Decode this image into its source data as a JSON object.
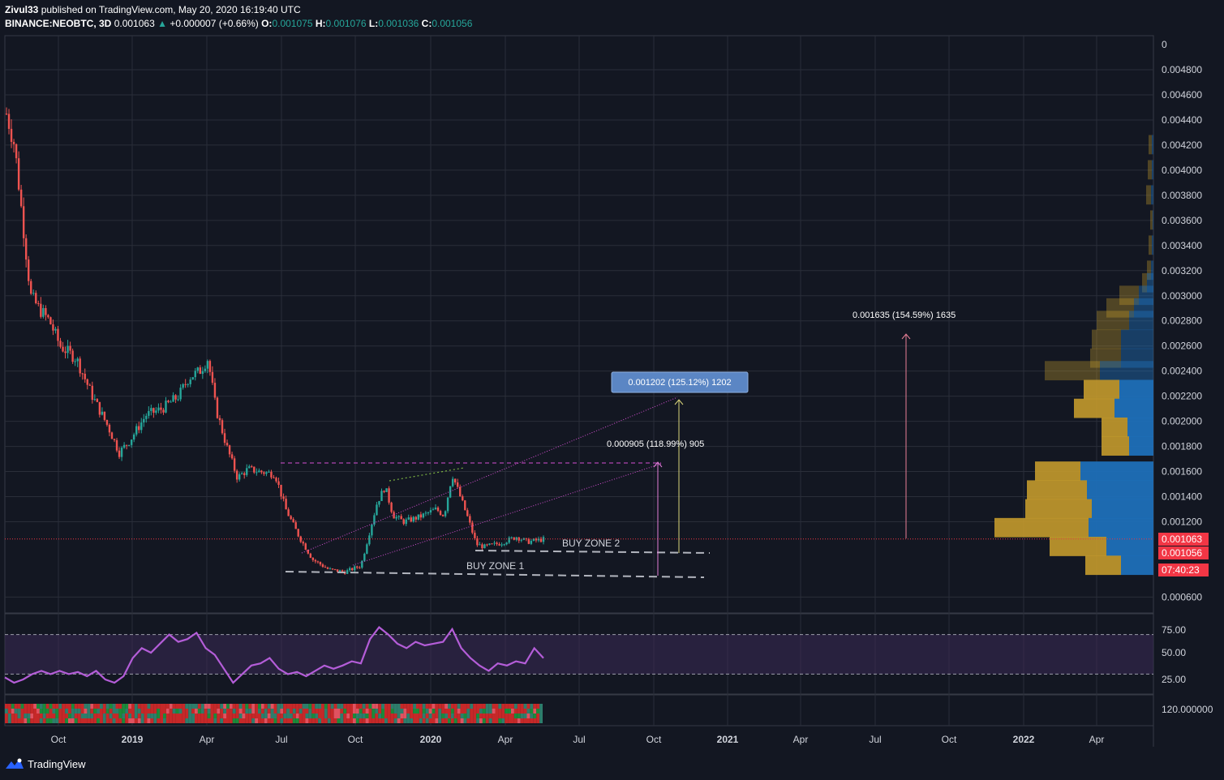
{
  "header": {
    "author": "Zivul33",
    "published": "published on TradingView.com, May 20, 2020 16:19:40 UTC",
    "symbol": "BINANCE:NEOBTC, 3D",
    "last": "0.001063",
    "change": "+0.000007 (+0.66%)",
    "o_label": "O:",
    "o": "0.001075",
    "h_label": "H:",
    "h": "0.001076",
    "l_label": "L:",
    "l": "0.001036",
    "c_label": "C:",
    "c": "0.001056"
  },
  "footer": {
    "brand": "TradingView"
  },
  "colors": {
    "background": "#131722",
    "grid": "#2a2e39",
    "up": "#26a69a",
    "down": "#ef5350",
    "rsi_line": "#b45dd8",
    "rsi_band": "#3b2a55",
    "vp_up": "#1e6fb8",
    "vp_down": "#c49a2c",
    "price_label_bg": "#f23645",
    "magenta": "#d64fd4"
  },
  "chart_data": {
    "type": "candlestick",
    "symbol": "BINANCE:NEOBTC",
    "timeframe": "3D",
    "x_ticks": [
      "Oct",
      "2019",
      "Apr",
      "Jul",
      "Oct",
      "2020",
      "Apr",
      "Jul",
      "Oct",
      "2021",
      "Apr",
      "Jul",
      "Oct",
      "2022",
      "Apr"
    ],
    "y_ticks": [
      "0",
      "0.004800",
      "0.004600",
      "0.004400",
      "0.004200",
      "0.004000",
      "0.003800",
      "0.003600",
      "0.003400",
      "0.003200",
      "0.003000",
      "0.002800",
      "0.002600",
      "0.002400",
      "0.002200",
      "0.002000",
      "0.001800",
      "0.001600",
      "0.001400",
      "0.001200",
      "0.000600"
    ],
    "ylim": [
      0.0005,
      0.005
    ],
    "price_path": [
      [
        0.0,
        0.00445
      ],
      [
        0.015,
        0.0042
      ],
      [
        0.03,
        0.0036
      ],
      [
        0.045,
        0.003
      ],
      [
        0.06,
        0.0029
      ],
      [
        0.08,
        0.0028
      ],
      [
        0.1,
        0.0026
      ],
      [
        0.13,
        0.0025
      ],
      [
        0.16,
        0.0022
      ],
      [
        0.19,
        0.00195
      ],
      [
        0.21,
        0.00175
      ],
      [
        0.23,
        0.00185
      ],
      [
        0.26,
        0.00205
      ],
      [
        0.29,
        0.0021
      ],
      [
        0.32,
        0.0022
      ],
      [
        0.34,
        0.00235
      ],
      [
        0.36,
        0.0024
      ],
      [
        0.375,
        0.0025
      ],
      [
        0.39,
        0.0021
      ],
      [
        0.41,
        0.0018
      ],
      [
        0.43,
        0.00155
      ],
      [
        0.45,
        0.00162
      ],
      [
        0.47,
        0.0016
      ],
      [
        0.5,
        0.00158
      ],
      [
        0.52,
        0.0013
      ],
      [
        0.545,
        0.00108
      ],
      [
        0.57,
        0.0009
      ],
      [
        0.6,
        0.00082
      ],
      [
        0.63,
        0.0008
      ],
      [
        0.66,
        0.00085
      ],
      [
        0.675,
        0.0011
      ],
      [
        0.69,
        0.00135
      ],
      [
        0.705,
        0.00148
      ],
      [
        0.72,
        0.00125
      ],
      [
        0.74,
        0.0012
      ],
      [
        0.77,
        0.00124
      ],
      [
        0.8,
        0.0013
      ],
      [
        0.815,
        0.00125
      ],
      [
        0.83,
        0.00158
      ],
      [
        0.845,
        0.0014
      ],
      [
        0.86,
        0.00122
      ],
      [
        0.875,
        0.00102
      ],
      [
        0.89,
        0.001
      ],
      [
        0.92,
        0.00103
      ],
      [
        0.95,
        0.00108
      ],
      [
        0.97,
        0.00104
      ],
      [
        1.0,
        0.00106
      ]
    ],
    "last_price": "0.001063",
    "close_price": "0.001056",
    "countdown": "07:40:23",
    "annotations": {
      "buy_zone_1": "BUY ZONE 1",
      "buy_zone_2": "BUY ZONE 2",
      "proj_1": "0.000905 (118.99%) 905",
      "proj_2": "0.001202 (125.12%) 1202",
      "proj_3": "0.001635 (154.59%) 1635"
    },
    "rsi": {
      "levels": [
        "75.00",
        "50.00",
        "25.00"
      ],
      "upper": 70,
      "lower": 30,
      "values": [
        27,
        22,
        25,
        30,
        33,
        30,
        33,
        30,
        32,
        28,
        33,
        25,
        22,
        28,
        45,
        55,
        50,
        60,
        70,
        62,
        65,
        72,
        55,
        48,
        35,
        22,
        30,
        38,
        40,
        45,
        35,
        30,
        32,
        28,
        33,
        38,
        35,
        38,
        42,
        40,
        65,
        78,
        70,
        60,
        55,
        62,
        58,
        60,
        62,
        76,
        55,
        45,
        38,
        33,
        40,
        38,
        42,
        40,
        55,
        45
      ]
    },
    "bottom_pane_label": "120.000000",
    "volume_profile": {
      "rows": [
        {
          "price": 0.0042,
          "up": 2,
          "down": 4
        },
        {
          "price": 0.004,
          "up": 2,
          "down": 5
        },
        {
          "price": 0.0038,
          "up": 3,
          "down": 6
        },
        {
          "price": 0.0036,
          "up": 1,
          "down": 3
        },
        {
          "price": 0.0034,
          "up": 2,
          "down": 4
        },
        {
          "price": 0.0032,
          "up": 3,
          "down": 5
        },
        {
          "price": 0.0031,
          "up": 8,
          "down": 6
        },
        {
          "price": 0.003,
          "up": 18,
          "down": 24
        },
        {
          "price": 0.0029,
          "up": 24,
          "down": 34
        },
        {
          "price": 0.0028,
          "up": 30,
          "down": 40
        },
        {
          "price": 0.00265,
          "up": 40,
          "down": 36
        },
        {
          "price": 0.0025,
          "up": 40,
          "down": 38
        },
        {
          "price": 0.0024,
          "up": 66,
          "down": 68
        },
        {
          "price": 0.00225,
          "up": 42,
          "down": 44
        },
        {
          "price": 0.0021,
          "up": 48,
          "down": 50
        },
        {
          "price": 0.00195,
          "up": 32,
          "down": 32
        },
        {
          "price": 0.0018,
          "up": 30,
          "down": 34
        },
        {
          "price": 0.0016,
          "up": 90,
          "down": 56
        },
        {
          "price": 0.00145,
          "up": 82,
          "down": 74
        },
        {
          "price": 0.0013,
          "up": 76,
          "down": 82
        },
        {
          "price": 0.00115,
          "up": 80,
          "down": 116
        },
        {
          "price": 0.001,
          "up": 58,
          "down": 70
        },
        {
          "price": 0.00085,
          "up": 40,
          "down": 44
        }
      ]
    }
  }
}
